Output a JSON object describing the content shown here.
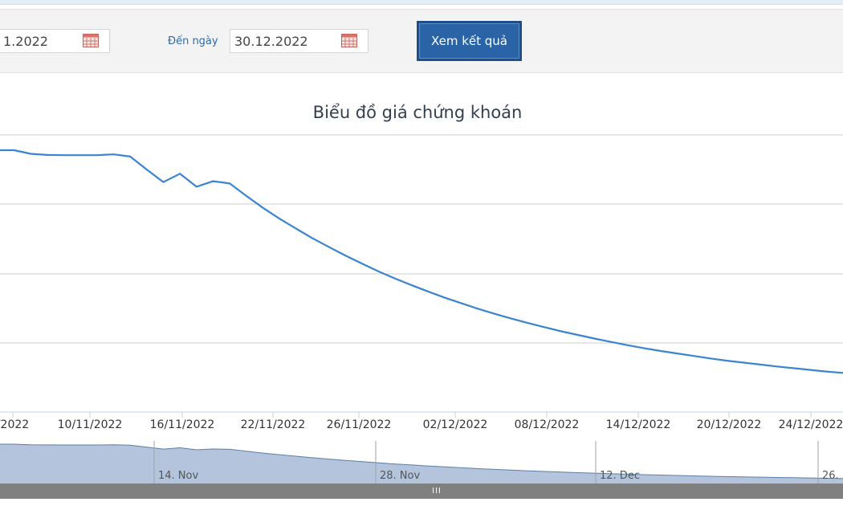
{
  "toolbar": {
    "from_date_value": "1.2022",
    "to_label": "Đến ngày",
    "to_date_value": "30.12.2022",
    "view_button_label": "Xem kết quả",
    "calendar_icon": "calendar-icon"
  },
  "navigator": {
    "labels": [
      "14. Nov",
      "28. Nov",
      "12. Dec",
      "26."
    ],
    "scrollbar_grip": "III"
  },
  "colors": {
    "line": "#3a84d1",
    "navigator_fill": "#b3c4dc",
    "navigator_line": "#5d7fa6",
    "button": "#2a63a6",
    "label_blue": "#2d6aa8"
  },
  "chart_data": {
    "type": "line",
    "title": "Biểu đồ giá chứng khoán",
    "xlabel": "",
    "ylabel": "",
    "x_tick_labels": [
      "/2022",
      "10/11/2022",
      "16/11/2022",
      "22/11/2022",
      "26/11/2022",
      "02/12/2022",
      "08/12/2022",
      "14/12/2022",
      "20/12/2022",
      "24/12/2022"
    ],
    "x_axis_type": "date",
    "x_range": [
      "2022-11-05",
      "2022-12-27"
    ],
    "y_axis_labels_visible": false,
    "grid": "horizontal",
    "series": [
      {
        "x": [
          "2022-11-05",
          "2022-11-06",
          "2022-11-07",
          "2022-11-08",
          "2022-11-09",
          "2022-11-10",
          "2022-11-11",
          "2022-11-12",
          "2022-11-13",
          "2022-11-14",
          "2022-11-15",
          "2022-11-16",
          "2022-11-17",
          "2022-11-18",
          "2022-11-19",
          "2022-11-20",
          "2022-11-21",
          "2022-11-22",
          "2022-11-23",
          "2022-11-24",
          "2022-11-25",
          "2022-11-26",
          "2022-11-27",
          "2022-11-28",
          "2022-11-29",
          "2022-11-30",
          "2022-12-01",
          "2022-12-02",
          "2022-12-03",
          "2022-12-04",
          "2022-12-05",
          "2022-12-06",
          "2022-12-07",
          "2022-12-08",
          "2022-12-09",
          "2022-12-10",
          "2022-12-11",
          "2022-12-12",
          "2022-12-13",
          "2022-12-14",
          "2022-12-15",
          "2022-12-16",
          "2022-12-17",
          "2022-12-18",
          "2022-12-19",
          "2022-12-20",
          "2022-12-21",
          "2022-12-22",
          "2022-12-23",
          "2022-12-24",
          "2022-12-25",
          "2022-12-26",
          "2022-12-27"
        ],
        "y": [
          100,
          100,
          98.7,
          98.3,
          98.2,
          98.2,
          98.2,
          98.5,
          97.7,
          93,
          88.5,
          91.5,
          86.8,
          88.8,
          88,
          83.5,
          79.2,
          75.3,
          71.7,
          68.2,
          65,
          61.9,
          59,
          56.2,
          53.6,
          51.2,
          48.9,
          46.7,
          44.7,
          42.7,
          40.9,
          39.2,
          37.6,
          36.1,
          34.6,
          33.3,
          32,
          30.8,
          29.6,
          28.5,
          27.5,
          26.6,
          25.7,
          24.8,
          24,
          23.3,
          22.6,
          21.9,
          21.3,
          20.7,
          20.1,
          19.6,
          19.1
        ]
      }
    ]
  }
}
